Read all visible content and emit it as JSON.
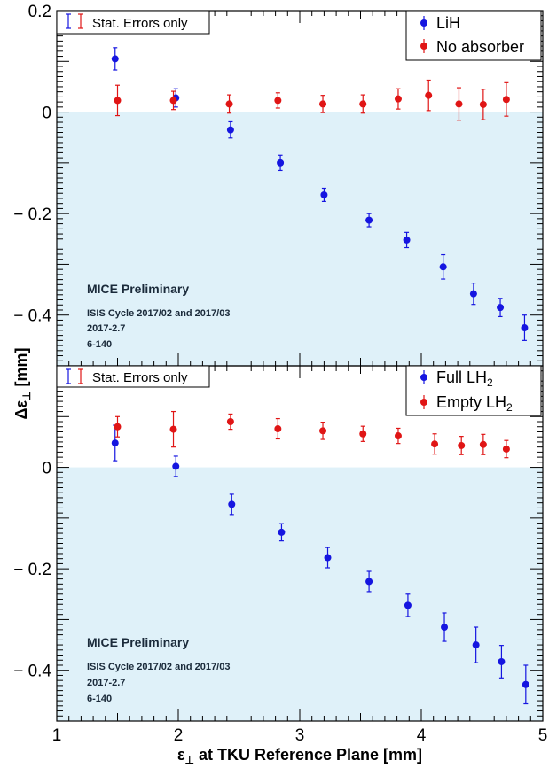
{
  "chart_data": [
    {
      "type": "scatter",
      "panel": "top",
      "xlim": [
        1,
        5
      ],
      "ylim": [
        -0.5,
        0.2
      ],
      "yticks": [
        0.2,
        0,
        -0.2,
        -0.4
      ],
      "ytick_labels": [
        "0.2",
        "0",
        "− 0.2",
        "− 0.4"
      ],
      "stat_label": "Stat. Errors only",
      "annotation": {
        "title": "MICE Preliminary",
        "lines": [
          "ISIS Cycle 2017/02 and 2017/03",
          "2017-2.7",
          "6-140"
        ]
      },
      "legend_placement": "top-right",
      "series": [
        {
          "name": "LiH",
          "color": "#1515e0",
          "points": [
            {
              "x": 1.48,
              "y": 0.105,
              "err": 0.022
            },
            {
              "x": 1.98,
              "y": 0.028,
              "err": 0.018
            },
            {
              "x": 2.43,
              "y": -0.035,
              "err": 0.016
            },
            {
              "x": 2.84,
              "y": -0.1,
              "err": 0.015
            },
            {
              "x": 3.2,
              "y": -0.163,
              "err": 0.013
            },
            {
              "x": 3.57,
              "y": -0.213,
              "err": 0.013
            },
            {
              "x": 3.88,
              "y": -0.252,
              "err": 0.015
            },
            {
              "x": 4.18,
              "y": -0.305,
              "err": 0.024
            },
            {
              "x": 4.43,
              "y": -0.358,
              "err": 0.021
            },
            {
              "x": 4.65,
              "y": -0.385,
              "err": 0.018
            },
            {
              "x": 4.85,
              "y": -0.425,
              "err": 0.025
            }
          ]
        },
        {
          "name": "No absorber",
          "color": "#e01515",
          "points": [
            {
              "x": 1.5,
              "y": 0.023,
              "err": 0.03
            },
            {
              "x": 1.96,
              "y": 0.023,
              "err": 0.018
            },
            {
              "x": 2.42,
              "y": 0.016,
              "err": 0.018
            },
            {
              "x": 2.82,
              "y": 0.023,
              "err": 0.015
            },
            {
              "x": 3.19,
              "y": 0.016,
              "err": 0.017
            },
            {
              "x": 3.52,
              "y": 0.016,
              "err": 0.018
            },
            {
              "x": 3.81,
              "y": 0.026,
              "err": 0.02
            },
            {
              "x": 4.06,
              "y": 0.033,
              "err": 0.03
            },
            {
              "x": 4.31,
              "y": 0.016,
              "err": 0.032
            },
            {
              "x": 4.51,
              "y": 0.015,
              "err": 0.03
            },
            {
              "x": 4.7,
              "y": 0.025,
              "err": 0.033
            }
          ]
        }
      ]
    },
    {
      "type": "scatter",
      "panel": "bottom",
      "xlim": [
        1,
        5
      ],
      "ylim": [
        -0.5,
        0.2
      ],
      "yticks": [
        0,
        -0.2,
        -0.4
      ],
      "ytick_labels": [
        "0",
        "− 0.2",
        "− 0.4"
      ],
      "xticks": [
        1,
        2,
        3,
        4,
        5
      ],
      "xtick_labels": [
        "1",
        "2",
        "3",
        "4",
        "5"
      ],
      "stat_label": "Stat. Errors only",
      "annotation": {
        "title": "MICE Preliminary",
        "lines": [
          "ISIS Cycle 2017/02 and 2017/03",
          "2017-2.7",
          "6-140"
        ]
      },
      "legend_placement": "top-right",
      "series": [
        {
          "name": "Full LH",
          "name_sub": "2",
          "color": "#1515e0",
          "points": [
            {
              "x": 1.48,
              "y": 0.048,
              "err": 0.035
            },
            {
              "x": 1.98,
              "y": 0.002,
              "err": 0.02
            },
            {
              "x": 2.44,
              "y": -0.073,
              "err": 0.02
            },
            {
              "x": 2.85,
              "y": -0.128,
              "err": 0.017
            },
            {
              "x": 3.23,
              "y": -0.178,
              "err": 0.02
            },
            {
              "x": 3.57,
              "y": -0.225,
              "err": 0.02
            },
            {
              "x": 3.89,
              "y": -0.272,
              "err": 0.022
            },
            {
              "x": 4.19,
              "y": -0.315,
              "err": 0.028
            },
            {
              "x": 4.45,
              "y": -0.35,
              "err": 0.035
            },
            {
              "x": 4.66,
              "y": -0.383,
              "err": 0.032
            },
            {
              "x": 4.86,
              "y": -0.428,
              "err": 0.038
            }
          ]
        },
        {
          "name": "Empty LH",
          "name_sub": "2",
          "color": "#e01515",
          "points": [
            {
              "x": 1.5,
              "y": 0.08,
              "err": 0.02
            },
            {
              "x": 1.96,
              "y": 0.075,
              "err": 0.035
            },
            {
              "x": 2.43,
              "y": 0.09,
              "err": 0.015
            },
            {
              "x": 2.82,
              "y": 0.076,
              "err": 0.02
            },
            {
              "x": 3.19,
              "y": 0.072,
              "err": 0.017
            },
            {
              "x": 3.52,
              "y": 0.066,
              "err": 0.015
            },
            {
              "x": 3.81,
              "y": 0.062,
              "err": 0.015
            },
            {
              "x": 4.11,
              "y": 0.046,
              "err": 0.02
            },
            {
              "x": 4.33,
              "y": 0.043,
              "err": 0.018
            },
            {
              "x": 4.51,
              "y": 0.045,
              "err": 0.02
            },
            {
              "x": 4.7,
              "y": 0.036,
              "err": 0.017
            }
          ]
        }
      ]
    }
  ],
  "axes": {
    "ylabel_main": "Δε",
    "ylabel_sub": "⊥",
    "ylabel_unit": " [mm]",
    "xlabel_main": "ε",
    "xlabel_sub": "⊥",
    "xlabel_rest": " at TKU Reference Plane [mm]"
  },
  "colors": {
    "shade": "#dff1f9",
    "frame": "#000000"
  }
}
